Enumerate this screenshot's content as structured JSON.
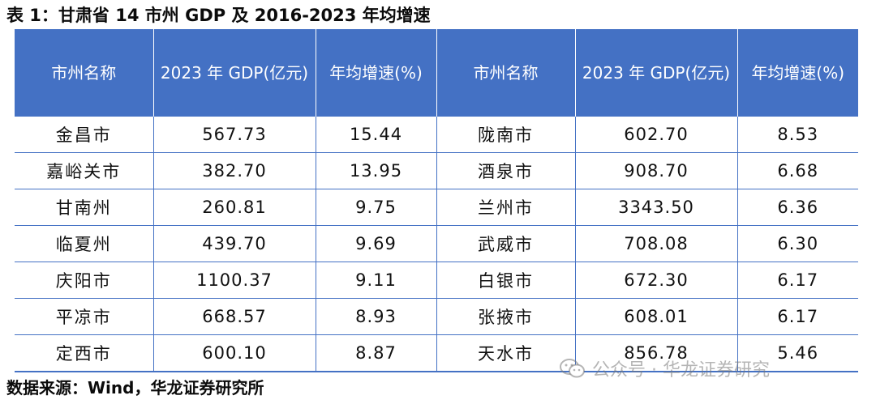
{
  "title": "表 1：甘肃省 14 市州 GDP 及 2016-2023 年均增速",
  "table": {
    "headers": {
      "city": "市州名称",
      "gdp": "2023 年 GDP(亿元)",
      "growth": "年均增速(%)"
    },
    "rows": [
      {
        "city_a": "金昌市",
        "gdp_a": "567.73",
        "growth_a": "15.44",
        "city_b": "陇南市",
        "gdp_b": "602.70",
        "growth_b": "8.53"
      },
      {
        "city_a": "嘉峪关市",
        "gdp_a": "382.70",
        "growth_a": "13.95",
        "city_b": "酒泉市",
        "gdp_b": "908.70",
        "growth_b": "6.68"
      },
      {
        "city_a": "甘南州",
        "gdp_a": "260.81",
        "growth_a": "9.75",
        "city_b": "兰州市",
        "gdp_b": "3343.50",
        "growth_b": "6.36"
      },
      {
        "city_a": "临夏州",
        "gdp_a": "439.70",
        "growth_a": "9.69",
        "city_b": "武威市",
        "gdp_b": "708.08",
        "growth_b": "6.30"
      },
      {
        "city_a": "庆阳市",
        "gdp_a": "1100.37",
        "growth_a": "9.11",
        "city_b": "白银市",
        "gdp_b": "672.30",
        "growth_b": "6.17"
      },
      {
        "city_a": "平凉市",
        "gdp_a": "668.57",
        "growth_a": "8.93",
        "city_b": "张掖市",
        "gdp_b": "608.01",
        "growth_b": "6.17"
      },
      {
        "city_a": "定西市",
        "gdp_a": "600.10",
        "growth_a": "8.87",
        "city_b": "天水市",
        "gdp_b": "856.78",
        "growth_b": "5.46"
      }
    ]
  },
  "source": "数据来源：Wind，华龙证券研究所",
  "watermark": "公众号 · 华龙证券研究",
  "colors": {
    "header_bg": "#4471c4",
    "border": "#4471c4",
    "header_text": "#ffffff"
  }
}
